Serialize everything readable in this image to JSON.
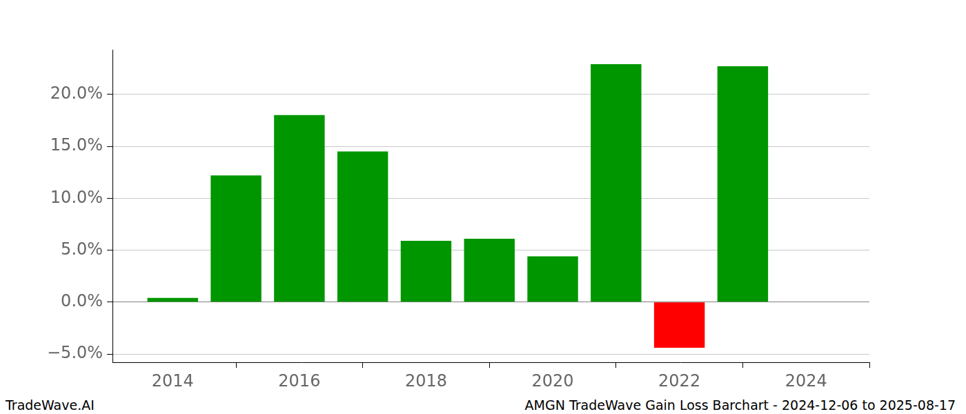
{
  "chart_data": {
    "type": "bar",
    "title": "AMGN TradeWave Gain Loss Barchart - 2024-12-06 to 2025-08-17",
    "annotations": [
      "TradeWave.AI"
    ],
    "x": [
      2014,
      2015,
      2016,
      2017,
      2018,
      2019,
      2020,
      2021,
      2022,
      2023
    ],
    "values": [
      0.4,
      12.2,
      18.0,
      14.5,
      5.9,
      6.1,
      4.4,
      22.9,
      -4.4,
      22.7
    ],
    "colors": [
      "#009600",
      "#009600",
      "#009600",
      "#009600",
      "#009600",
      "#009600",
      "#009600",
      "#009600",
      "#ff0000",
      "#009600"
    ],
    "xlim": [
      2013.05,
      2025.0
    ],
    "xticks": [
      2014,
      2016,
      2018,
      2020,
      2022,
      2024
    ],
    "ylim": [
      -5.8,
      24.3
    ],
    "yticks": [
      {
        "value": -5,
        "label": "−5.0%"
      },
      {
        "value": 0,
        "label": "0.0%"
      },
      {
        "value": 5,
        "label": "5.0%"
      },
      {
        "value": 10,
        "label": "10.0%"
      },
      {
        "value": 15,
        "label": "15.0%"
      },
      {
        "value": 20,
        "label": "20.0%"
      }
    ],
    "grid": "y"
  }
}
